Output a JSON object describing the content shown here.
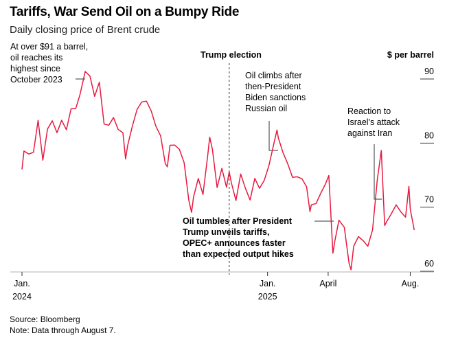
{
  "title": "Tariffs, War Send Oil on a Bumpy Ride",
  "subtitle": "Daily closing price of Brent crude",
  "source": "Source: Bloomberg",
  "note": "Note: Data through August 7.",
  "chart_data": {
    "type": "line",
    "ylabel": "$ per barrel",
    "ylim": [
      60,
      90
    ],
    "yticks": [
      "90",
      "80",
      "70",
      "60"
    ],
    "xlim": [
      "2024-01-02",
      "2025-08-07"
    ],
    "xticks": [
      {
        "date": "2024-01-01",
        "label": "Jan.",
        "sublabel": "2024"
      },
      {
        "date": "2025-01-01",
        "label": "Jan.",
        "sublabel": "2025"
      },
      {
        "date": "2025-04-01",
        "label": "April",
        "sublabel": ""
      },
      {
        "date": "2025-08-01",
        "label": "Aug.",
        "sublabel": ""
      }
    ],
    "grid": false,
    "line_color": "#e8193f",
    "series": [
      {
        "x": [
          "2024-01-02",
          "2024-01-05",
          "2024-01-12",
          "2024-01-19",
          "2024-01-26",
          "2024-02-02",
          "2024-02-09",
          "2024-02-16",
          "2024-02-23",
          "2024-03-01",
          "2024-03-08",
          "2024-03-15",
          "2024-03-22",
          "2024-03-28",
          "2024-04-05",
          "2024-04-12",
          "2024-04-19",
          "2024-04-26",
          "2024-05-03",
          "2024-05-10",
          "2024-05-17",
          "2024-05-24",
          "2024-05-31",
          "2024-06-04",
          "2024-06-07",
          "2024-06-14",
          "2024-06-21",
          "2024-06-28",
          "2024-07-05",
          "2024-07-12",
          "2024-07-19",
          "2024-07-26",
          "2024-08-02",
          "2024-08-05",
          "2024-08-09",
          "2024-08-16",
          "2024-08-23",
          "2024-08-30",
          "2024-09-06",
          "2024-09-10",
          "2024-09-13",
          "2024-09-20",
          "2024-09-27",
          "2024-10-04",
          "2024-10-07",
          "2024-10-11",
          "2024-10-18",
          "2024-10-25",
          "2024-11-01",
          "2024-11-05",
          "2024-11-08",
          "2024-11-15",
          "2024-11-22",
          "2024-11-29",
          "2024-12-06",
          "2024-12-13",
          "2024-12-20",
          "2024-12-27",
          "2025-01-03",
          "2025-01-10",
          "2025-01-15",
          "2025-01-17",
          "2025-01-24",
          "2025-01-31",
          "2025-02-07",
          "2025-02-14",
          "2025-02-21",
          "2025-02-28",
          "2025-03-05",
          "2025-03-07",
          "2025-03-14",
          "2025-03-21",
          "2025-03-28",
          "2025-04-02",
          "2025-04-08",
          "2025-04-11",
          "2025-04-17",
          "2025-04-25",
          "2025-05-02",
          "2025-05-05",
          "2025-05-09",
          "2025-05-16",
          "2025-05-23",
          "2025-05-30",
          "2025-06-06",
          "2025-06-13",
          "2025-06-19",
          "2025-06-24",
          "2025-06-27",
          "2025-07-03",
          "2025-07-11",
          "2025-07-18",
          "2025-07-25",
          "2025-07-30",
          "2025-08-01",
          "2025-08-07"
        ],
        "y": [
          75.89,
          78.76,
          78.29,
          78.56,
          83.55,
          77.33,
          82.19,
          83.47,
          81.62,
          83.55,
          82.08,
          85.34,
          85.43,
          87.48,
          91.17,
          90.45,
          87.29,
          89.5,
          82.96,
          82.79,
          83.98,
          82.12,
          81.62,
          77.52,
          79.62,
          82.62,
          85.24,
          86.41,
          86.54,
          85.03,
          82.63,
          81.13,
          76.81,
          76.3,
          79.66,
          79.68,
          79.02,
          76.93,
          71.06,
          69.19,
          71.61,
          74.49,
          71.98,
          78.05,
          80.93,
          79.04,
          73.06,
          76.05,
          73.1,
          75.53,
          73.87,
          71.04,
          75.17,
          72.94,
          71.12,
          74.49,
          72.94,
          74.17,
          76.51,
          79.76,
          82.03,
          80.79,
          78.5,
          76.76,
          74.66,
          74.74,
          74.43,
          73.18,
          69.3,
          70.36,
          70.58,
          72.16,
          73.63,
          74.95,
          62.82,
          64.76,
          67.96,
          66.87,
          61.29,
          60.23,
          63.91,
          65.41,
          64.78,
          63.9,
          66.47,
          74.23,
          78.85,
          67.14,
          67.77,
          68.8,
          70.36,
          69.28,
          68.44,
          73.24,
          69.67,
          66.43
        ]
      }
    ],
    "annotations": [
      {
        "date": "2024-04-05",
        "lines": [
          "At over $91 a barrel,",
          "oil reaches its",
          "highest since",
          "October 2023"
        ],
        "bold": false
      },
      {
        "date": "2024-11-05",
        "lines": [
          "Trump election"
        ],
        "bold": true
      },
      {
        "date": "2025-01-15",
        "lines": [
          "Oil climbs after",
          "then-President",
          "Biden sanctions",
          "Russian oil"
        ],
        "bold": false
      },
      {
        "date": "2025-06-13",
        "lines": [
          "Reaction to",
          "Israel's attack",
          "against Iran"
        ],
        "bold": false
      },
      {
        "date": "2025-04-02",
        "lines": [
          "Oil tumbles after President",
          "Trump unveils tariffs,",
          "OPEC+ announces faster",
          "than expected output hikes"
        ],
        "bold": true
      }
    ]
  }
}
